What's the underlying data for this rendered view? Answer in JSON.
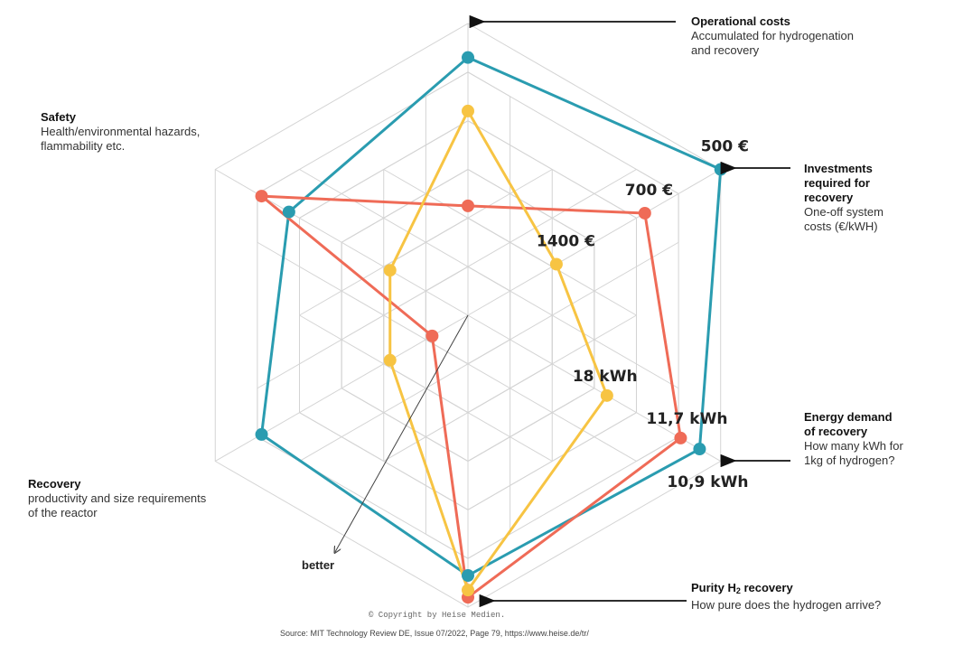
{
  "chart_data": {
    "type": "radar",
    "title": "",
    "rings": 6,
    "axes": [
      {
        "key": "operational_costs",
        "title": "Operational costs",
        "desc": [
          "Accumulated for hydrogenation",
          "and recovery"
        ]
      },
      {
        "key": "investments",
        "title_lines": [
          "Investments",
          "required for",
          "recovery"
        ],
        "desc": [
          "One-off system",
          "costs (€/kWH)"
        ]
      },
      {
        "key": "energy_demand",
        "title_lines": [
          "Energy demand",
          "of recovery"
        ],
        "desc": [
          "How many kWh for",
          "1kg of hydrogen?"
        ]
      },
      {
        "key": "purity",
        "title": "Purity H",
        "title_sub": "2",
        "title_after": " recovery",
        "desc": [
          "How pure does the hydrogen arrive?"
        ]
      },
      {
        "key": "recovery",
        "title": "Recovery",
        "desc": [
          "productivity and size requirements",
          "of the reactor"
        ]
      },
      {
        "key": "safety",
        "title": "Safety",
        "desc": [
          "Health/environmental hazards,",
          "flammability etc."
        ]
      }
    ],
    "axis_order_note": "top, upper-right, lower-right, bottom, lower-left, upper-left",
    "series": [
      {
        "name": "teal",
        "color": "#2a9cb0",
        "values": [
          5.3,
          6.0,
          5.5,
          5.35,
          4.9,
          4.25
        ]
      },
      {
        "name": "red",
        "color": "#ef6b57",
        "values": [
          2.25,
          4.2,
          5.05,
          5.8,
          0.85,
          4.9
        ]
      },
      {
        "name": "yellow",
        "color": "#f7c443",
        "values": [
          4.2,
          2.1,
          3.3,
          5.65,
          1.85,
          1.85
        ]
      }
    ],
    "value_labels": [
      {
        "text": "500 €",
        "series": "teal",
        "axis": 1
      },
      {
        "text": "700 €",
        "series": "red",
        "axis": 1
      },
      {
        "text": "1400 €",
        "series": "yellow",
        "axis": 1
      },
      {
        "text": "18 kWh",
        "series": "yellow",
        "axis": 2
      },
      {
        "text": "11,7 kWh",
        "series": "red",
        "axis": 2
      },
      {
        "text": "10,9 kWh",
        "series": "teal",
        "axis": 2
      }
    ],
    "direction_label": "better",
    "grid": true,
    "grid_color": "#d4d4d4"
  },
  "footer": {
    "copyright": "© Copyright by Heise Medien.",
    "source": "Source: MIT Technology Review DE, Issue 07/2022, Page 79, https://www.heise.de/tr/"
  }
}
